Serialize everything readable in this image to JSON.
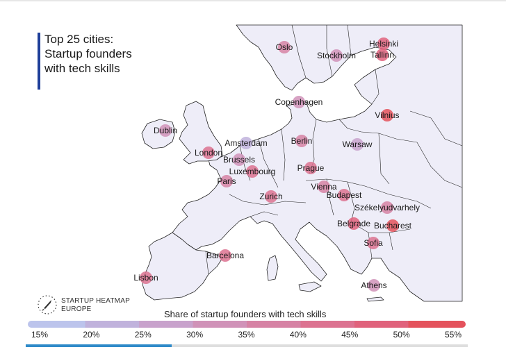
{
  "title": [
    "Top 25 cities:",
    "Startup founders",
    "with tech skills"
  ],
  "logo": {
    "line1": "STARTUP HEATMAP",
    "line2": "EUROPE",
    "icon": "rocket-icon"
  },
  "legend": {
    "title": "Share of startup founders with tech skills",
    "ticks": [
      "15%",
      "20%",
      "25%",
      "30%",
      "35%",
      "40%",
      "45%",
      "50%",
      "55%"
    ],
    "range": [
      15,
      55
    ],
    "colors": [
      "#bcc4ec",
      "#c0b2dc",
      "#c8a2cc",
      "#d092b8",
      "#d682a4",
      "#dc7290",
      "#e0627c",
      "#e4525c"
    ]
  },
  "colors": {
    "land": "#eeedf8",
    "water": "#ffffff",
    "border": "#222222",
    "accent": "#1f3f9a"
  },
  "progress": {
    "fraction": 0.33
  },
  "chart_data": {
    "type": "map",
    "metric": "Share of startup founders with tech skills",
    "cities": [
      {
        "name": "Oslo",
        "share": 37
      },
      {
        "name": "Stockholm",
        "share": 33
      },
      {
        "name": "Helsinki",
        "share": 45
      },
      {
        "name": "Tallinn",
        "share": 46
      },
      {
        "name": "Copenhagen",
        "share": 31
      },
      {
        "name": "Vilnius",
        "share": 50
      },
      {
        "name": "Dublin",
        "share": 32
      },
      {
        "name": "Amsterdam",
        "share": 22
      },
      {
        "name": "Berlin",
        "share": 36
      },
      {
        "name": "Warsaw",
        "share": 27
      },
      {
        "name": "London",
        "share": 40
      },
      {
        "name": "Brussels",
        "share": 34
      },
      {
        "name": "Luxembourg",
        "share": 42
      },
      {
        "name": "Prague",
        "share": 44
      },
      {
        "name": "Paris",
        "share": 37
      },
      {
        "name": "Vienna",
        "share": 38
      },
      {
        "name": "Budapest",
        "share": 40
      },
      {
        "name": "Zurich",
        "share": 41
      },
      {
        "name": "Székelyudvarhely",
        "share": 38
      },
      {
        "name": "Belgrade",
        "share": 47
      },
      {
        "name": "Bucharest",
        "share": 55
      },
      {
        "name": "Sofia",
        "share": 43
      },
      {
        "name": "Barcelona",
        "share": 42
      },
      {
        "name": "Lisbon",
        "share": 41
      },
      {
        "name": "Athens",
        "share": 33
      }
    ]
  }
}
